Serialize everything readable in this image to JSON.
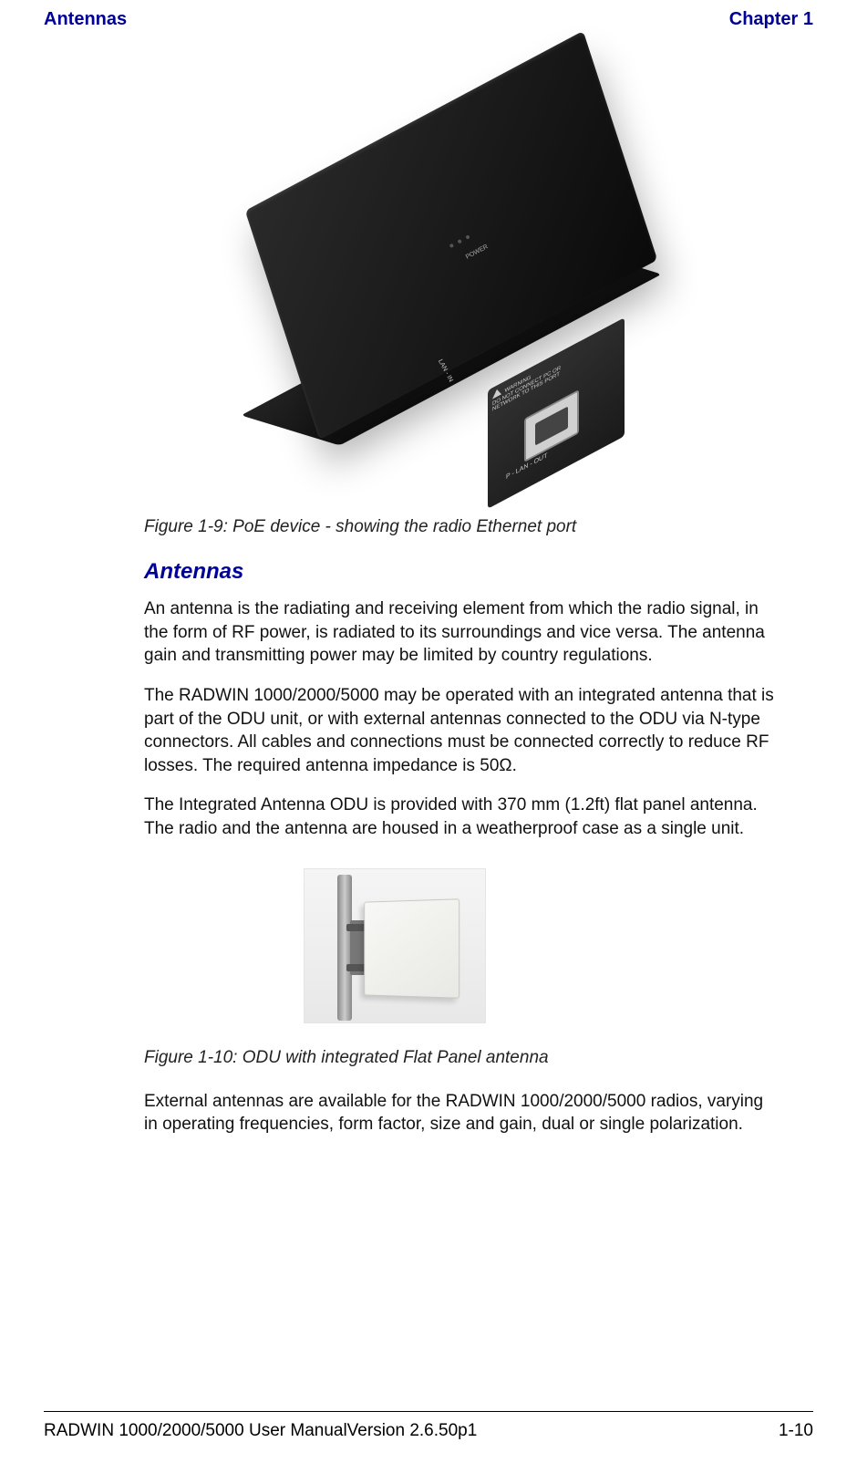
{
  "header": {
    "left": "Antennas",
    "right": "Chapter 1"
  },
  "figure1": {
    "caption": "Figure 1-9: PoE device - showing the radio Ethernet port",
    "labels": {
      "power": "POWER",
      "warning_line1": "WARNING",
      "warning_line2": "DO NOT CONNECT PC OR",
      "warning_line3": "NETWORK TO THIS PORT",
      "lan_in": "LAN - IN",
      "lan_out": "P - LAN - OUT"
    }
  },
  "section": {
    "heading": "Antennas",
    "para1": "An antenna is the radiating and receiving element from which the radio signal, in the form of RF power, is radiated to its surroundings and vice versa. The antenna gain and transmitting power may be limited by country regulations.",
    "para2": "The RADWIN 1000/2000/5000 may be operated with an integrated antenna that is part of the ODU unit, or with external antennas connected to the ODU via N-type connectors. All cables and connections must be connected correctly to reduce RF losses. The required antenna impedance is 50Ω.",
    "para3": "The Integrated Antenna ODU is provided with 370 mm (1.2ft) flat panel antenna. The radio and the antenna are housed in a weatherproof case as a single unit."
  },
  "figure2": {
    "caption": "Figure 1-10: ODU with integrated Flat Panel antenna"
  },
  "para_after_fig2": "External antennas are available for the RADWIN 1000/2000/5000 radios, varying in operating frequencies, form factor, size and gain, dual or single polarization.",
  "footer": {
    "left": "RADWIN 1000/2000/5000 User ManualVersion  2.6.50p1",
    "right": "1-10"
  },
  "colors": {
    "header_text": "#000099",
    "body_text": "#111111",
    "caption_text": "#222222",
    "background": "#ffffff"
  }
}
